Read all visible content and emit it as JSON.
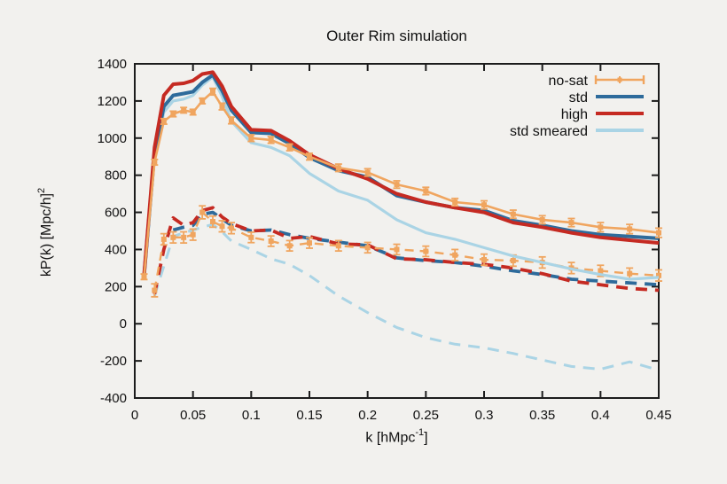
{
  "figure": {
    "background_color": "#f2f1ee",
    "axis_color": "#1c1c1c",
    "text_color": "#111111"
  },
  "legend": {
    "entries": [
      {
        "id": "no-sat",
        "label": "no-sat",
        "color": "#f0a55f",
        "style": "errorbar"
      },
      {
        "id": "std",
        "label": "std",
        "color": "#2e6b9b",
        "style": "line"
      },
      {
        "id": "high",
        "label": "high",
        "color": "#c52a22",
        "style": "line"
      },
      {
        "id": "std-smeared",
        "label": "std smeared",
        "color": "#aad4e5",
        "style": "line"
      }
    ]
  },
  "chart_data": {
    "type": "line",
    "title": "Outer Rim simulation",
    "xlabel": {
      "prefix": "k [hMpc",
      "sup": "-1",
      "suffix": "]"
    },
    "ylabel": {
      "prefix": "kP(k) [Mpc/h]",
      "sup": "2",
      "suffix": ""
    },
    "xlim": [
      0,
      0.45
    ],
    "ylim": [
      -400,
      1400
    ],
    "x_ticks": [
      0,
      0.05,
      0.1,
      0.15,
      0.2,
      0.25,
      0.3,
      0.35,
      0.4,
      0.45
    ],
    "x_tick_labels": [
      "0",
      "0.05",
      "0.1",
      "0.15",
      "0.2",
      "0.25",
      "0.3",
      "0.35",
      "0.4",
      "0.45"
    ],
    "y_ticks": [
      -400,
      -200,
      0,
      200,
      400,
      600,
      800,
      1000,
      1200,
      1400
    ],
    "y_tick_labels": [
      "-400",
      "-200",
      "0",
      "200",
      "400",
      "600",
      "800",
      "1000",
      "1200",
      "1400"
    ],
    "grid": false,
    "legend_position": "top-right-inside",
    "x": [
      0.008,
      0.017,
      0.025,
      0.033,
      0.042,
      0.05,
      0.058,
      0.067,
      0.075,
      0.083,
      0.1,
      0.117,
      0.133,
      0.15,
      0.175,
      0.2,
      0.225,
      0.25,
      0.275,
      0.3,
      0.325,
      0.35,
      0.375,
      0.4,
      0.425,
      0.45
    ],
    "series": [
      {
        "id": "std-smeared-dashed",
        "name": "std smeared (dashed)",
        "color": "#aad4e5",
        "width": 3,
        "dash": "13 9",
        "markers": false,
        "error_bars": false,
        "in_legend": false,
        "values": [
          null,
          150,
          310,
          470,
          490,
          505,
          520,
          535,
          495,
          445,
          400,
          350,
          320,
          260,
          150,
          60,
          -20,
          -75,
          -110,
          -130,
          -160,
          -195,
          -230,
          -245,
          -205,
          -250
        ]
      },
      {
        "id": "std-dashed",
        "name": "std (dashed)",
        "color": "#2e6b9b",
        "width": 3.8,
        "dash": "13 9",
        "markers": false,
        "error_bars": false,
        "in_legend": false,
        "values": [
          null,
          null,
          null,
          505,
          520,
          530,
          590,
          600,
          565,
          530,
          500,
          505,
          480,
          460,
          440,
          420,
          355,
          340,
          330,
          310,
          285,
          265,
          240,
          230,
          220,
          210
        ]
      },
      {
        "id": "high-dashed",
        "name": "high (dashed)",
        "color": "#c52a22",
        "width": 3.8,
        "dash": "13 9",
        "markers": false,
        "error_bars": false,
        "in_legend": false,
        "values": [
          null,
          160,
          400,
          570,
          530,
          545,
          610,
          625,
          575,
          540,
          500,
          505,
          460,
          470,
          430,
          425,
          350,
          345,
          330,
          320,
          300,
          270,
          230,
          210,
          190,
          180
        ]
      },
      {
        "id": "no-sat-dashed",
        "name": "no-sat (dashed)",
        "color": "#f0a55f",
        "width": 2.4,
        "dash": "10 7",
        "markers": true,
        "error_bars": true,
        "in_legend": false,
        "values": [
          null,
          180,
          455,
          465,
          465,
          480,
          600,
          550,
          525,
          515,
          465,
          445,
          420,
          435,
          420,
          410,
          400,
          390,
          370,
          345,
          340,
          330,
          300,
          285,
          270,
          260
        ],
        "err": [
          null,
          35,
          30,
          30,
          30,
          30,
          35,
          30,
          30,
          30,
          28,
          28,
          28,
          28,
          28,
          28,
          28,
          28,
          30,
          30,
          30,
          30,
          30,
          30,
          30,
          30
        ]
      },
      {
        "id": "std-smeared",
        "name": "std smeared",
        "color": "#aad4e5",
        "width": 3.2,
        "dash": null,
        "markers": false,
        "error_bars": false,
        "in_legend": true,
        "values": [
          250,
          895,
          1140,
          1200,
          1210,
          1230,
          1285,
          1330,
          1225,
          1090,
          975,
          950,
          905,
          810,
          715,
          665,
          560,
          490,
          455,
          410,
          365,
          330,
          295,
          265,
          240,
          250
        ]
      },
      {
        "id": "std",
        "name": "std",
        "color": "#2e6b9b",
        "width": 4,
        "dash": null,
        "markers": false,
        "error_bars": false,
        "in_legend": true,
        "values": [
          258,
          920,
          1170,
          1230,
          1240,
          1250,
          1300,
          1340,
          1255,
          1150,
          1030,
          1025,
          970,
          895,
          825,
          790,
          690,
          655,
          625,
          610,
          555,
          530,
          500,
          480,
          470,
          460
        ]
      },
      {
        "id": "high",
        "name": "high",
        "color": "#c52a22",
        "width": 4,
        "dash": null,
        "markers": false,
        "error_bars": false,
        "in_legend": true,
        "values": [
          262,
          950,
          1230,
          1290,
          1295,
          1310,
          1345,
          1355,
          1280,
          1170,
          1045,
          1040,
          985,
          910,
          835,
          780,
          700,
          655,
          625,
          600,
          545,
          520,
          490,
          465,
          450,
          435
        ]
      },
      {
        "id": "no-sat",
        "name": "no-sat",
        "color": "#f0a55f",
        "width": 2.6,
        "dash": null,
        "markers": true,
        "error_bars": true,
        "in_legend": true,
        "values": [
          253,
          870,
          1090,
          1130,
          1150,
          1140,
          1200,
          1250,
          1170,
          1095,
          1000,
          990,
          950,
          900,
          840,
          815,
          750,
          715,
          655,
          640,
          590,
          560,
          545,
          520,
          510,
          490
        ],
        "err": [
          15,
          15,
          15,
          15,
          15,
          15,
          15,
          18,
          18,
          18,
          18,
          18,
          18,
          18,
          20,
          20,
          20,
          20,
          20,
          22,
          22,
          22,
          22,
          25,
          25,
          25
        ]
      }
    ]
  }
}
